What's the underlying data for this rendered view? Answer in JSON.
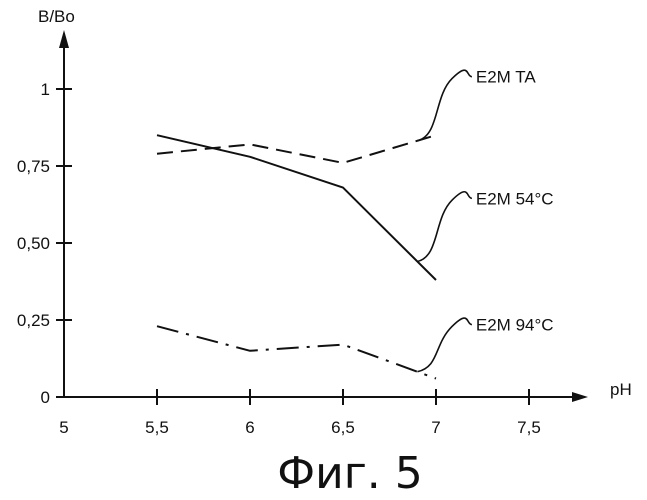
{
  "chart_data": {
    "type": "line",
    "title": "",
    "caption": "Фиг. 5",
    "xlabel": "pH",
    "ylabel": "B/Bo",
    "xlim": [
      5,
      7.75
    ],
    "ylim": [
      0,
      1.15
    ],
    "x_ticks": [
      {
        "value": 5,
        "label": "5"
      },
      {
        "value": 5.5,
        "label": "5,5"
      },
      {
        "value": 6,
        "label": "6"
      },
      {
        "value": 6.5,
        "label": "6,5"
      },
      {
        "value": 7,
        "label": "7"
      },
      {
        "value": 7.5,
        "label": "7,5"
      }
    ],
    "y_ticks": [
      {
        "value": 0,
        "label": "0"
      },
      {
        "value": 0.25,
        "label": "0,25"
      },
      {
        "value": 0.5,
        "label": "0,50"
      },
      {
        "value": 0.75,
        "label": "0,75"
      },
      {
        "value": 1,
        "label": "1"
      }
    ],
    "grid": false,
    "legend": "inline-callouts",
    "color": "#111111",
    "series": [
      {
        "name": "E2M TA",
        "line_style": "dashed",
        "x": [
          5.5,
          6,
          6.5,
          7
        ],
        "y": [
          0.79,
          0.82,
          0.76,
          0.85
        ],
        "label_anchor": {
          "x": 7.15,
          "y": 1.04
        }
      },
      {
        "name": "E2M 54°C",
        "line_style": "solid",
        "x": [
          5.5,
          6,
          6.5,
          7
        ],
        "y": [
          0.85,
          0.78,
          0.68,
          0.38
        ],
        "label_anchor": {
          "x": 7.15,
          "y": 0.645
        }
      },
      {
        "name": "E2M 94°C",
        "line_style": "dashdot",
        "x": [
          5.5,
          6,
          6.5,
          7
        ],
        "y": [
          0.23,
          0.15,
          0.17,
          0.06
        ],
        "label_anchor": {
          "x": 7.15,
          "y": 0.235
        }
      }
    ]
  }
}
